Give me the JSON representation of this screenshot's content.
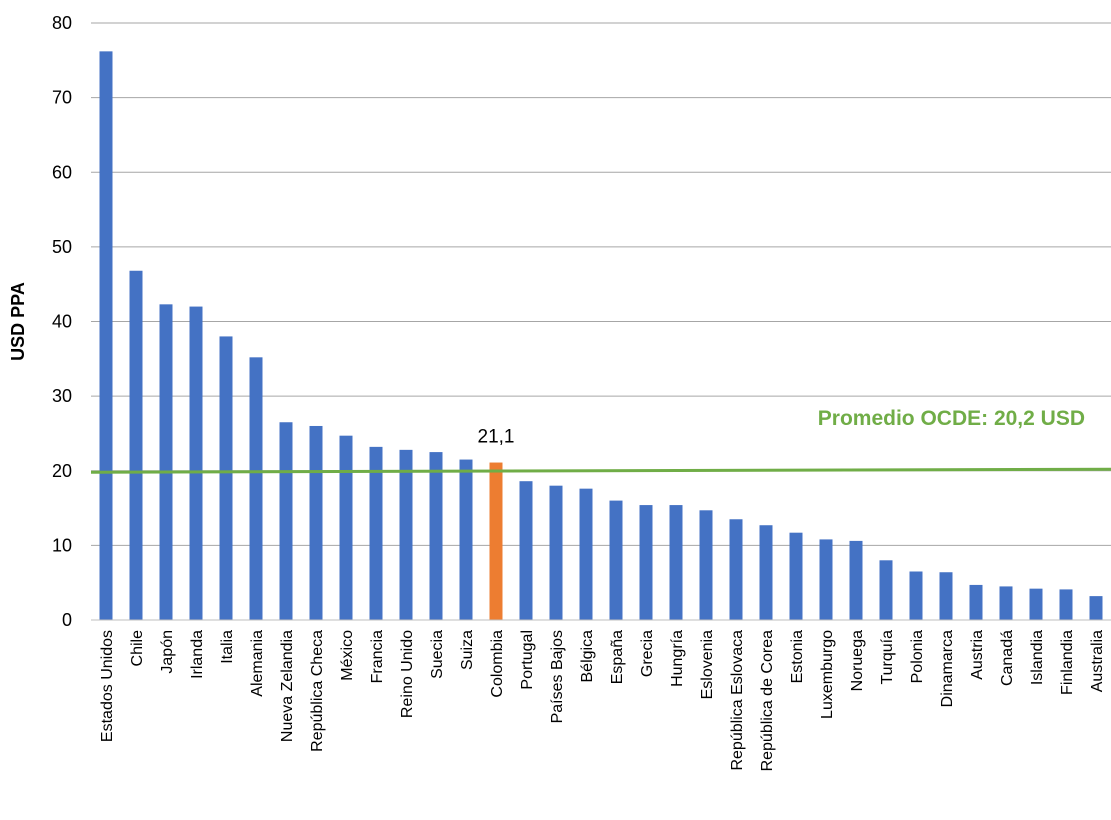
{
  "chart_data": {
    "type": "bar",
    "ylabel": "USD PPA",
    "xlabel": "",
    "ylim": [
      0,
      80
    ],
    "yticks": [
      0,
      10,
      20,
      30,
      40,
      50,
      60,
      70,
      80
    ],
    "grid": true,
    "categories": [
      "Estados Unidos",
      "Chile",
      "Japón",
      "Irlanda",
      "Italia",
      "Alemania",
      "Nueva Zelandia",
      "República Checa",
      "México",
      "Francia",
      "Reino Unido",
      "Suecia",
      "Suiza",
      "Colombia",
      "Portugal",
      "Países Bajos",
      "Bélgica",
      "España",
      "Grecia",
      "Hungría",
      "Eslovenia",
      "República Eslovaca",
      "República de Corea",
      "Estonia",
      "Luxemburgo",
      "Noruega",
      "Turquía",
      "Polonia",
      "Dinamarca",
      "Austria",
      "Canadá",
      "Islandia",
      "Finlandia",
      "Australia"
    ],
    "values": [
      76.2,
      46.8,
      42.3,
      42.0,
      38.0,
      35.2,
      26.5,
      26.0,
      24.7,
      23.2,
      22.8,
      22.5,
      21.5,
      21.1,
      18.6,
      18.0,
      17.6,
      16.0,
      15.4,
      15.4,
      14.7,
      13.5,
      12.7,
      11.7,
      10.8,
      10.6,
      8.0,
      6.5,
      6.4,
      4.7,
      4.5,
      4.2,
      4.1,
      3.2
    ],
    "highlight_category": "Colombia",
    "highlight_label": "21,1",
    "bar_color": "#4472C4",
    "highlight_color": "#ED7D31",
    "average": {
      "label": "Promedio OCDE: 20,2 USD",
      "value_start": 19.8,
      "value_end": 20.2,
      "color": "#70AD47"
    }
  }
}
